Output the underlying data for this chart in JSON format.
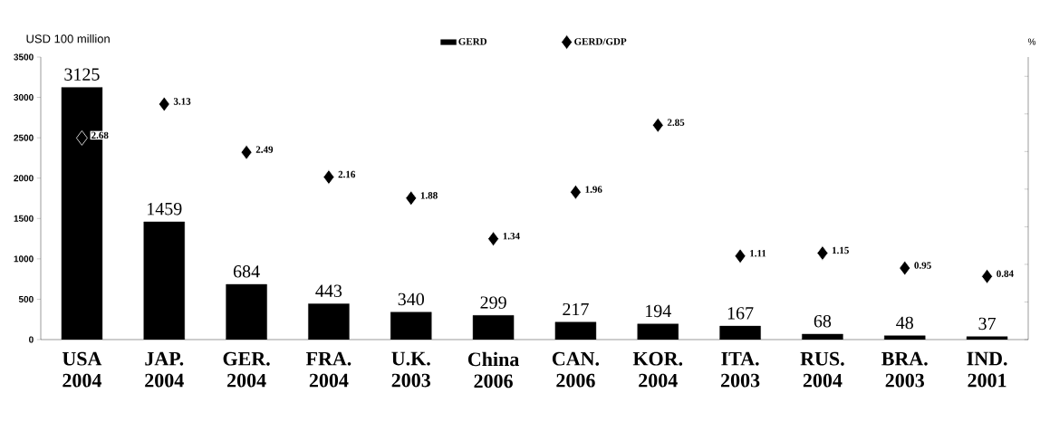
{
  "chart_data": {
    "type": "bar",
    "ylabel": "USD 100 million",
    "y2label": "%",
    "categories": [
      "USA 2004",
      "JAP. 2004",
      "GER. 2004",
      "FRA. 2004",
      "U.K. 2003",
      "China 2006",
      "CAN. 2006",
      "KOR. 2004",
      "ITA. 2003",
      "RUS. 2004",
      "BRA. 2003",
      "IND. 2001"
    ],
    "series": [
      {
        "name": "GERD",
        "color": "#000000",
        "values": [
          3125,
          1459,
          684,
          443,
          340,
          299,
          217,
          194,
          167,
          68,
          48,
          37
        ]
      },
      {
        "name": "GERD/GDP",
        "type": "scatter",
        "axis": "y2",
        "color": "#000000",
        "marker": "diamond",
        "values": [
          2.68,
          3.13,
          2.49,
          2.16,
          1.88,
          1.34,
          1.96,
          2.85,
          1.11,
          1.15,
          0.95,
          0.84
        ]
      }
    ],
    "ylim": [
      0,
      3500
    ],
    "yticks": [
      0,
      500,
      1000,
      1500,
      2000,
      2500,
      3000,
      3500
    ],
    "data_labels": true,
    "legend": "top",
    "grid": false
  }
}
